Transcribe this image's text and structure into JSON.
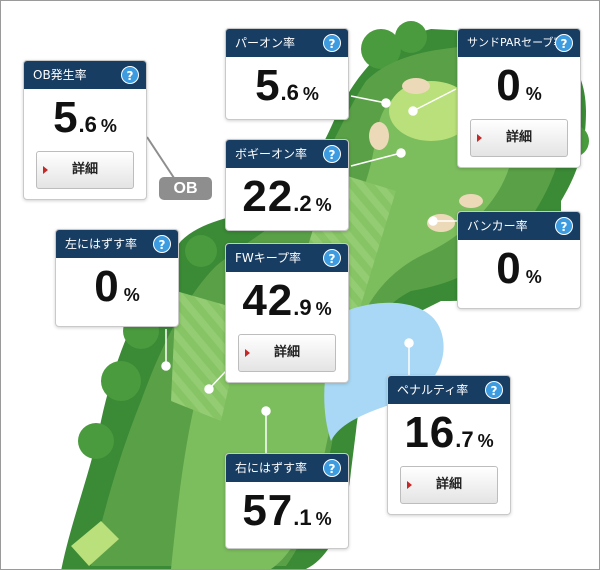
{
  "ob_badge": "OB",
  "help_glyph": "?",
  "colors": {
    "card_header": "#183d63",
    "help_icon": "#3d9be0",
    "fairway": "#7cbd5e",
    "rough": "#5aa047",
    "green": "#b9e07a",
    "bunker": "#ecd9b8",
    "water": "#a8d8f5",
    "trees": "#3a8a36"
  },
  "cards": {
    "ob": {
      "title": "OB発生率",
      "value_int": "5",
      "value_dec": ".6",
      "unit": "%",
      "detail": "詳細"
    },
    "par_on": {
      "title": "パーオン率",
      "value_int": "5",
      "value_dec": ".6",
      "unit": "%"
    },
    "sand_save": {
      "title": "サンドPARセーブ率",
      "value_int": "0",
      "value_dec": "",
      "unit": "%",
      "detail": "詳細"
    },
    "bogey_on": {
      "title": "ボギーオン率",
      "value_int": "22",
      "value_dec": ".2",
      "unit": "%"
    },
    "bunker": {
      "title": "バンカー率",
      "value_int": "0",
      "value_dec": "",
      "unit": "%"
    },
    "miss_left": {
      "title": "左にはずす率",
      "value_int": "0",
      "value_dec": "",
      "unit": "%"
    },
    "fw_keep": {
      "title": "FWキープ率",
      "value_int": "42",
      "value_dec": ".9",
      "unit": "%",
      "detail": "詳細"
    },
    "penalty": {
      "title": "ペナルティ率",
      "value_int": "16",
      "value_dec": ".7",
      "unit": "%",
      "detail": "詳細"
    },
    "miss_right": {
      "title": "右にはずす率",
      "value_int": "57",
      "value_dec": ".1",
      "unit": "%"
    }
  }
}
